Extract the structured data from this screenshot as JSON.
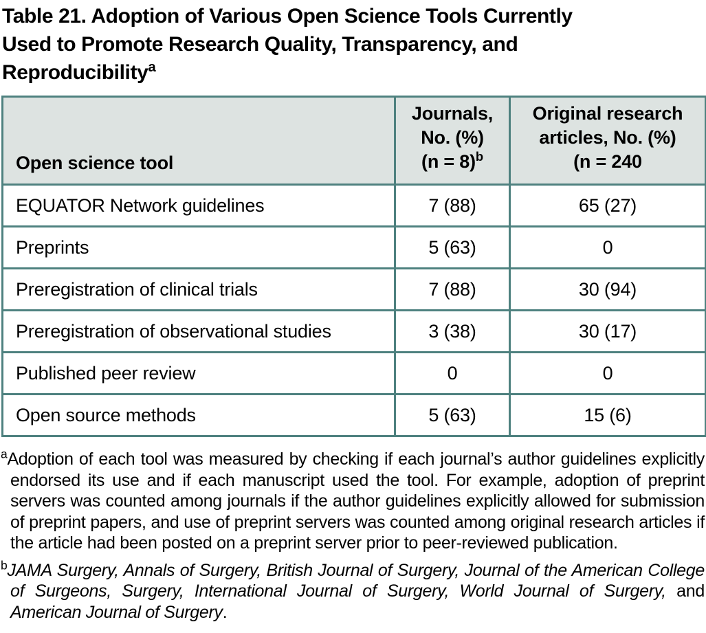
{
  "colors": {
    "table_border": "#4e817f",
    "header_bg": "#dde3e1",
    "text": "#000000"
  },
  "title": {
    "lines": [
      "Table 21. Adoption of Various Open Science Tools Currently",
      "Used to Promote Research Quality, Transparency, and",
      "Reproducibility"
    ],
    "superscript": "a"
  },
  "table": {
    "header": {
      "col1": "Open science tool",
      "col2_lines": [
        "Journals,",
        "No. (%)",
        "(n = 8)"
      ],
      "col2_superscript": "b",
      "col3_lines": [
        "Original research",
        "articles, No. (%)",
        "(n = 240"
      ]
    },
    "rows": [
      {
        "tool": "EQUATOR Network guidelines",
        "journals": "7 (88)",
        "articles": "65 (27)"
      },
      {
        "tool": "Preprints",
        "journals": "5 (63)",
        "articles": "0"
      },
      {
        "tool": "Preregistration of clinical trials",
        "journals": "7 (88)",
        "articles": "30 (94)"
      },
      {
        "tool": "Preregistration of observational studies",
        "journals": "3 (38)",
        "articles": "30 (17)"
      },
      {
        "tool": "Published peer review",
        "journals": "0",
        "articles": "0"
      },
      {
        "tool": "Open source methods",
        "journals": "5 (63)",
        "articles": "15 (6)"
      }
    ]
  },
  "footnotes": {
    "a": {
      "marker": "a",
      "text": "Adoption of each tool was measured by checking if each journal’s author guidelines explicitly endorsed its use and if each manuscript used the tool. For example, adoption of preprint servers was counted among journals if the author guidelines explicitly allowed for submission of preprint papers, and use of preprint servers was counted among original research articles if the article had been posted on a preprint server prior to peer-reviewed publication."
    },
    "b": {
      "marker": "b",
      "segments": [
        {
          "text": "JAMA Surgery, Annals of Surgery, British Journal of Surgery, Journal of the American College of Surgeons, Surgery, International Journal of Surgery, World Journal of Surgery,",
          "italic": true
        },
        {
          "text": " and ",
          "italic": false
        },
        {
          "text": "American Journal of Surgery",
          "italic": true
        },
        {
          "text": ".",
          "italic": false
        }
      ]
    }
  }
}
